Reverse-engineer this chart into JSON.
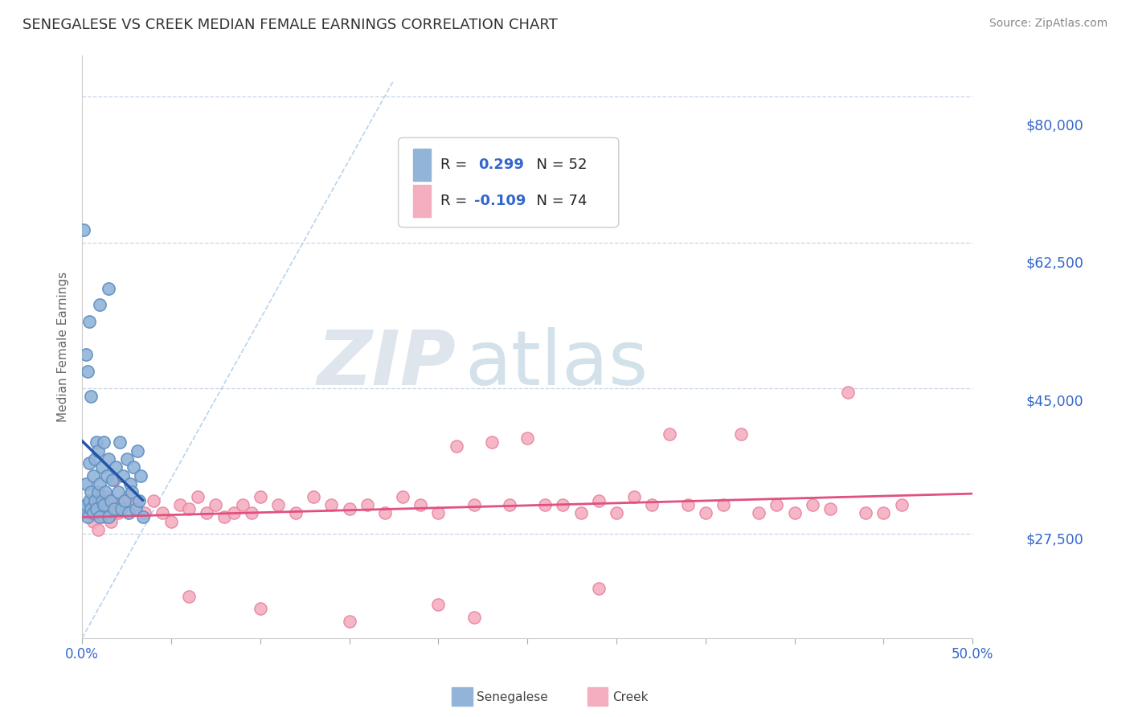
{
  "title": "SENEGALESE VS CREEK MEDIAN FEMALE EARNINGS CORRELATION CHART",
  "source": "Source: ZipAtlas.com",
  "ylabel": "Median Female Earnings",
  "yticks": [
    27500,
    45000,
    62500,
    80000
  ],
  "ytick_labels": [
    "$27,500",
    "$45,000",
    "$62,500",
    "$80,000"
  ],
  "xmin": 0.0,
  "xmax": 0.5,
  "ymin": 15000,
  "ymax": 85000,
  "senegalese_color": "#92b4d9",
  "creek_color": "#f4aec0",
  "senegalese_edge": "#6090c0",
  "creek_edge": "#e880a0",
  "trend_sen_color": "#2255aa",
  "trend_creek_color": "#e05080",
  "ref_line_color": "#a8c8e8",
  "legend_R_color": "#3366cc",
  "background_color": "#ffffff",
  "grid_color": "#c8d4e8",
  "title_color": "#333333",
  "ytick_color": "#3366cc",
  "xtick_color": "#3366cc",
  "watermark_ZIP": "ZIP",
  "watermark_atlas": "atlas",
  "senegalese_N": 52,
  "creek_N": 74,
  "senegalese_R": "0.299",
  "creek_R": "-0.109",
  "senegalese_points": [
    [
      0.001,
      30500
    ],
    [
      0.002,
      31000
    ],
    [
      0.002,
      33500
    ],
    [
      0.003,
      29500
    ],
    [
      0.004,
      31500
    ],
    [
      0.004,
      36000
    ],
    [
      0.005,
      30500
    ],
    [
      0.005,
      32500
    ],
    [
      0.006,
      30000
    ],
    [
      0.006,
      34500
    ],
    [
      0.007,
      31500
    ],
    [
      0.007,
      36500
    ],
    [
      0.008,
      30500
    ],
    [
      0.008,
      38500
    ],
    [
      0.009,
      32500
    ],
    [
      0.009,
      37500
    ],
    [
      0.01,
      29500
    ],
    [
      0.01,
      33500
    ],
    [
      0.011,
      31500
    ],
    [
      0.011,
      35500
    ],
    [
      0.012,
      31000
    ],
    [
      0.012,
      38500
    ],
    [
      0.013,
      32500
    ],
    [
      0.014,
      34500
    ],
    [
      0.015,
      29500
    ],
    [
      0.015,
      36500
    ],
    [
      0.016,
      31500
    ],
    [
      0.017,
      34000
    ],
    [
      0.018,
      30500
    ],
    [
      0.019,
      35500
    ],
    [
      0.02,
      32500
    ],
    [
      0.021,
      38500
    ],
    [
      0.022,
      30500
    ],
    [
      0.023,
      34500
    ],
    [
      0.024,
      31500
    ],
    [
      0.025,
      36500
    ],
    [
      0.026,
      30000
    ],
    [
      0.027,
      33500
    ],
    [
      0.028,
      32500
    ],
    [
      0.029,
      35500
    ],
    [
      0.03,
      30500
    ],
    [
      0.031,
      37500
    ],
    [
      0.032,
      31500
    ],
    [
      0.033,
      34500
    ],
    [
      0.034,
      29500
    ],
    [
      0.004,
      53000
    ],
    [
      0.01,
      55000
    ],
    [
      0.015,
      57000
    ],
    [
      0.001,
      64000
    ],
    [
      0.002,
      49000
    ],
    [
      0.003,
      47000
    ],
    [
      0.005,
      44000
    ]
  ],
  "creek_points": [
    [
      0.005,
      31000
    ],
    [
      0.006,
      29000
    ],
    [
      0.007,
      30000
    ],
    [
      0.008,
      32000
    ],
    [
      0.009,
      28000
    ],
    [
      0.01,
      31000
    ],
    [
      0.011,
      30500
    ],
    [
      0.012,
      29500
    ],
    [
      0.013,
      32000
    ],
    [
      0.014,
      30000
    ],
    [
      0.015,
      31500
    ],
    [
      0.016,
      29000
    ],
    [
      0.017,
      30000
    ],
    [
      0.018,
      34000
    ],
    [
      0.019,
      31000
    ],
    [
      0.02,
      30000
    ],
    [
      0.025,
      32000
    ],
    [
      0.03,
      31000
    ],
    [
      0.035,
      30000
    ],
    [
      0.04,
      31500
    ],
    [
      0.045,
      30000
    ],
    [
      0.05,
      29000
    ],
    [
      0.055,
      31000
    ],
    [
      0.06,
      30500
    ],
    [
      0.065,
      32000
    ],
    [
      0.07,
      30000
    ],
    [
      0.075,
      31000
    ],
    [
      0.08,
      29500
    ],
    [
      0.085,
      30000
    ],
    [
      0.09,
      31000
    ],
    [
      0.095,
      30000
    ],
    [
      0.1,
      32000
    ],
    [
      0.11,
      31000
    ],
    [
      0.12,
      30000
    ],
    [
      0.13,
      32000
    ],
    [
      0.14,
      31000
    ],
    [
      0.15,
      30500
    ],
    [
      0.16,
      31000
    ],
    [
      0.17,
      30000
    ],
    [
      0.18,
      32000
    ],
    [
      0.19,
      31000
    ],
    [
      0.2,
      30000
    ],
    [
      0.21,
      38000
    ],
    [
      0.22,
      31000
    ],
    [
      0.23,
      38500
    ],
    [
      0.24,
      31000
    ],
    [
      0.25,
      39000
    ],
    [
      0.26,
      31000
    ],
    [
      0.27,
      31000
    ],
    [
      0.28,
      30000
    ],
    [
      0.29,
      31500
    ],
    [
      0.3,
      30000
    ],
    [
      0.31,
      32000
    ],
    [
      0.32,
      31000
    ],
    [
      0.33,
      39500
    ],
    [
      0.34,
      31000
    ],
    [
      0.35,
      30000
    ],
    [
      0.36,
      31000
    ],
    [
      0.37,
      39500
    ],
    [
      0.38,
      30000
    ],
    [
      0.39,
      31000
    ],
    [
      0.4,
      30000
    ],
    [
      0.41,
      31000
    ],
    [
      0.42,
      30500
    ],
    [
      0.43,
      44500
    ],
    [
      0.44,
      30000
    ],
    [
      0.45,
      30000
    ],
    [
      0.46,
      31000
    ],
    [
      0.06,
      20000
    ],
    [
      0.1,
      18500
    ],
    [
      0.15,
      17000
    ],
    [
      0.2,
      19000
    ],
    [
      0.22,
      17500
    ],
    [
      0.29,
      21000
    ]
  ]
}
